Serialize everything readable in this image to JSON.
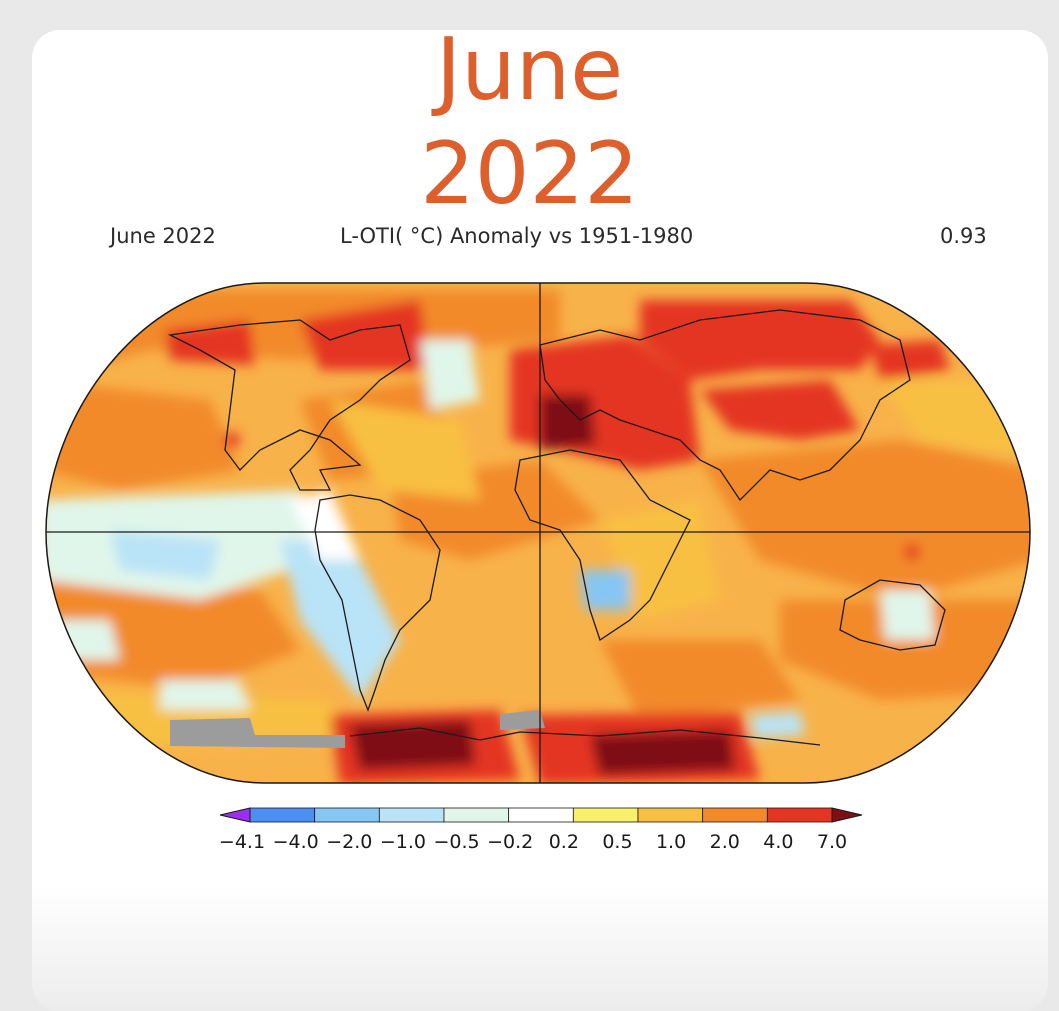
{
  "header": {
    "month": "June",
    "year": "2022"
  },
  "map": {
    "left_label": "June 2022",
    "center_label": "L-OTI( °C) Anomaly vs 1951-1980",
    "right_value": "0.93",
    "base_color": "#f8b24a"
  },
  "legend": {
    "ticks": [
      "−4.1",
      "−4.0",
      "−2.0",
      "−1.0",
      "−0.5",
      "−0.2",
      "0.2",
      "0.5",
      "1.0",
      "2.0",
      "4.0",
      "7.0"
    ],
    "colors": [
      "#9b2ef0",
      "#4c8ef2",
      "#86c6f3",
      "#b9e3f6",
      "#e0f6ea",
      "#ffffff",
      "#f8f06a",
      "#f8c043",
      "#f28a2c",
      "#e43522",
      "#7e0f12"
    ]
  }
}
